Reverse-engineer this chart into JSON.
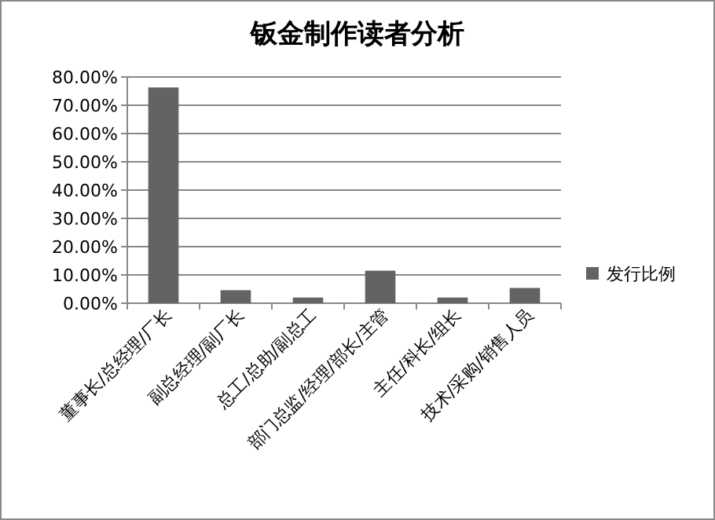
{
  "chart_data": {
    "type": "bar",
    "title": "钣金制作读者分析",
    "categories": [
      "董事长/总经理/厂长",
      "副总经理/副厂长",
      "总工/总助/副总工",
      "部门总监/经理/部长/主管",
      "主任/科长/组长",
      "技术/采购/销售人员"
    ],
    "series": [
      {
        "name": "发行比例",
        "color": "#636363",
        "values": [
          76.3,
          4.6,
          2.0,
          11.5,
          2.0,
          5.4
        ]
      }
    ],
    "ylim": [
      0,
      80
    ],
    "yticks": [
      {
        "value": 0,
        "label": "0.00%"
      },
      {
        "value": 10,
        "label": "10.00%"
      },
      {
        "value": 20,
        "label": "20.00%"
      },
      {
        "value": 30,
        "label": "30.00%"
      },
      {
        "value": 40,
        "label": "40.00%"
      },
      {
        "value": 50,
        "label": "50.00%"
      },
      {
        "value": 60,
        "label": "60.00%"
      },
      {
        "value": 70,
        "label": "70.00%"
      },
      {
        "value": 80,
        "label": "80.00%"
      }
    ],
    "grid": "y",
    "legend": "right"
  }
}
